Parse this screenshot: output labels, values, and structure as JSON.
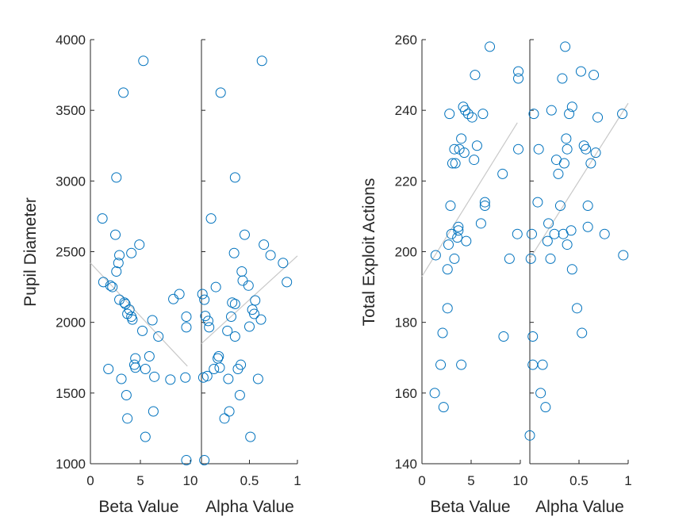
{
  "colors": {
    "marker": "#0072BD",
    "fit_line": "#c8c8c8",
    "axis": "#262626"
  },
  "chart_data": [
    {
      "type": "scatter",
      "ylabel": "Pupil Diameter",
      "ylim": [
        1000,
        4000
      ],
      "yticks": [
        1000,
        1500,
        2000,
        2500,
        3000,
        3500,
        4000
      ],
      "subplots": [
        {
          "xlabel": "Beta Value",
          "xlim": [
            0,
            10
          ],
          "xticks": [
            0,
            5,
            10
          ],
          "xtick_labels": [
            "0",
            "5",
            "10"
          ],
          "fit_line": [
            [
              0,
              2420
            ],
            [
              9.7,
              1690
            ]
          ],
          "points": [
            [
              1.2,
              2735
            ],
            [
              1.3,
              2285
            ],
            [
              1.8,
              1670
            ],
            [
              2.0,
              2260
            ],
            [
              2.2,
              2250
            ],
            [
              2.5,
              2620
            ],
            [
              2.6,
              2360
            ],
            [
              2.6,
              3025
            ],
            [
              2.8,
              2420
            ],
            [
              2.9,
              2160
            ],
            [
              2.9,
              2475
            ],
            [
              3.1,
              1600
            ],
            [
              3.3,
              3625
            ],
            [
              3.4,
              2140
            ],
            [
              3.5,
              2130
            ],
            [
              3.6,
              1485
            ],
            [
              3.7,
              1320
            ],
            [
              3.7,
              2060
            ],
            [
              3.9,
              2090
            ],
            [
              4.1,
              2040
            ],
            [
              4.1,
              2490
            ],
            [
              4.2,
              2020
            ],
            [
              4.4,
              1700
            ],
            [
              4.5,
              1745
            ],
            [
              4.5,
              1680
            ],
            [
              4.9,
              2550
            ],
            [
              5.2,
              1940
            ],
            [
              5.3,
              3850
            ],
            [
              5.5,
              1670
            ],
            [
              5.5,
              1190
            ],
            [
              5.9,
              1760
            ],
            [
              6.2,
              2015
            ],
            [
              6.3,
              1370
            ],
            [
              6.4,
              1615
            ],
            [
              6.8,
              1900
            ],
            [
              8.0,
              1595
            ],
            [
              8.3,
              2165
            ],
            [
              8.9,
              2200
            ],
            [
              9.5,
              1610
            ],
            [
              9.6,
              2040
            ],
            [
              9.6,
              1965
            ],
            [
              9.6,
              1025
            ]
          ]
        },
        {
          "xlabel": "Alpha Value",
          "xlim": [
            0,
            1
          ],
          "xticks": [
            0.5,
            1
          ],
          "xtick_labels": [
            "0.5",
            "1"
          ],
          "fit_line": [
            [
              0.0,
              1850
            ],
            [
              1.0,
              2470
            ]
          ],
          "points": [
            [
              0.01,
              2200
            ],
            [
              0.02,
              1610
            ],
            [
              0.03,
              2160
            ],
            [
              0.03,
              1025
            ],
            [
              0.04,
              2045
            ],
            [
              0.06,
              1620
            ],
            [
              0.07,
              2010
            ],
            [
              0.08,
              1965
            ],
            [
              0.1,
              2735
            ],
            [
              0.13,
              1670
            ],
            [
              0.15,
              2250
            ],
            [
              0.17,
              1745
            ],
            [
              0.18,
              1760
            ],
            [
              0.19,
              1680
            ],
            [
              0.2,
              3625
            ],
            [
              0.24,
              1320
            ],
            [
              0.27,
              1940
            ],
            [
              0.28,
              1600
            ],
            [
              0.29,
              1370
            ],
            [
              0.31,
              2040
            ],
            [
              0.32,
              2140
            ],
            [
              0.34,
              2490
            ],
            [
              0.35,
              2130
            ],
            [
              0.35,
              1900
            ],
            [
              0.35,
              3025
            ],
            [
              0.38,
              1670
            ],
            [
              0.4,
              1485
            ],
            [
              0.41,
              1700
            ],
            [
              0.42,
              2360
            ],
            [
              0.43,
              2295
            ],
            [
              0.45,
              2620
            ],
            [
              0.49,
              2260
            ],
            [
              0.5,
              1970
            ],
            [
              0.51,
              1190
            ],
            [
              0.53,
              2090
            ],
            [
              0.55,
              2060
            ],
            [
              0.56,
              2155
            ],
            [
              0.59,
              1600
            ],
            [
              0.62,
              2020
            ],
            [
              0.63,
              3850
            ],
            [
              0.65,
              2550
            ],
            [
              0.72,
              2475
            ],
            [
              0.85,
              2420
            ],
            [
              0.89,
              2285
            ]
          ]
        }
      ]
    },
    {
      "type": "scatter",
      "ylabel": "Total Exploit Actions",
      "ylim": [
        140,
        260
      ],
      "yticks": [
        140,
        160,
        180,
        200,
        220,
        240,
        260
      ],
      "subplots": [
        {
          "xlabel": "Beta Value",
          "xlim": [
            0,
            10
          ],
          "xticks": [
            0,
            5,
            10
          ],
          "xtick_labels": [
            "0",
            "5",
            "10"
          ],
          "fit_line": [
            [
              0,
              193
            ],
            [
              9.7,
              236.5
            ]
          ],
          "points": [
            [
              1.3,
              160
            ],
            [
              1.4,
              199
            ],
            [
              1.9,
              168
            ],
            [
              2.1,
              177
            ],
            [
              2.2,
              156
            ],
            [
              2.6,
              184
            ],
            [
              2.6,
              195
            ],
            [
              2.7,
              202
            ],
            [
              2.8,
              239
            ],
            [
              2.9,
              213
            ],
            [
              3.0,
              205
            ],
            [
              3.1,
              225
            ],
            [
              3.3,
              198
            ],
            [
              3.3,
              229
            ],
            [
              3.4,
              225
            ],
            [
              3.6,
              204
            ],
            [
              3.7,
              207
            ],
            [
              3.7,
              206
            ],
            [
              3.8,
              229
            ],
            [
              4.0,
              168
            ],
            [
              4.0,
              232
            ],
            [
              4.2,
              241
            ],
            [
              4.3,
              228
            ],
            [
              4.4,
              240
            ],
            [
              4.5,
              203
            ],
            [
              4.7,
              239
            ],
            [
              5.1,
              238
            ],
            [
              5.3,
              226
            ],
            [
              5.4,
              250
            ],
            [
              5.6,
              230
            ],
            [
              6.0,
              208
            ],
            [
              6.2,
              239
            ],
            [
              6.4,
              213
            ],
            [
              6.4,
              214
            ],
            [
              6.9,
              258
            ],
            [
              8.2,
              222
            ],
            [
              8.3,
              176
            ],
            [
              8.9,
              198
            ],
            [
              9.7,
              205
            ],
            [
              9.8,
              229
            ],
            [
              9.8,
              249
            ],
            [
              9.8,
              251
            ]
          ]
        },
        {
          "xlabel": "Alpha Value",
          "xlim": [
            0,
            1
          ],
          "xticks": [
            0.5,
            1
          ],
          "xtick_labels": [
            "0.5",
            "1"
          ],
          "fit_line": [
            [
              0.0,
              198
            ],
            [
              1.0,
              242
            ]
          ],
          "points": [
            [
              0.0,
              148
            ],
            [
              0.01,
              198
            ],
            [
              0.02,
              205
            ],
            [
              0.03,
              168
            ],
            [
              0.03,
              176
            ],
            [
              0.04,
              239
            ],
            [
              0.08,
              214
            ],
            [
              0.09,
              229
            ],
            [
              0.11,
              160
            ],
            [
              0.13,
              168
            ],
            [
              0.16,
              156
            ],
            [
              0.18,
              203
            ],
            [
              0.19,
              208
            ],
            [
              0.21,
              198
            ],
            [
              0.22,
              240
            ],
            [
              0.25,
              205
            ],
            [
              0.27,
              226
            ],
            [
              0.29,
              222
            ],
            [
              0.31,
              213
            ],
            [
              0.33,
              249
            ],
            [
              0.34,
              205
            ],
            [
              0.35,
              225
            ],
            [
              0.36,
              258
            ],
            [
              0.37,
              232
            ],
            [
              0.38,
              202
            ],
            [
              0.38,
              229
            ],
            [
              0.4,
              239
            ],
            [
              0.42,
              206
            ],
            [
              0.43,
              241
            ],
            [
              0.43,
              195
            ],
            [
              0.48,
              184
            ],
            [
              0.52,
              251
            ],
            [
              0.53,
              177
            ],
            [
              0.55,
              230
            ],
            [
              0.57,
              229
            ],
            [
              0.59,
              207
            ],
            [
              0.59,
              213
            ],
            [
              0.62,
              225
            ],
            [
              0.65,
              250
            ],
            [
              0.67,
              228
            ],
            [
              0.69,
              238
            ],
            [
              0.76,
              205
            ],
            [
              0.94,
              239
            ],
            [
              0.95,
              199
            ]
          ]
        }
      ]
    }
  ]
}
